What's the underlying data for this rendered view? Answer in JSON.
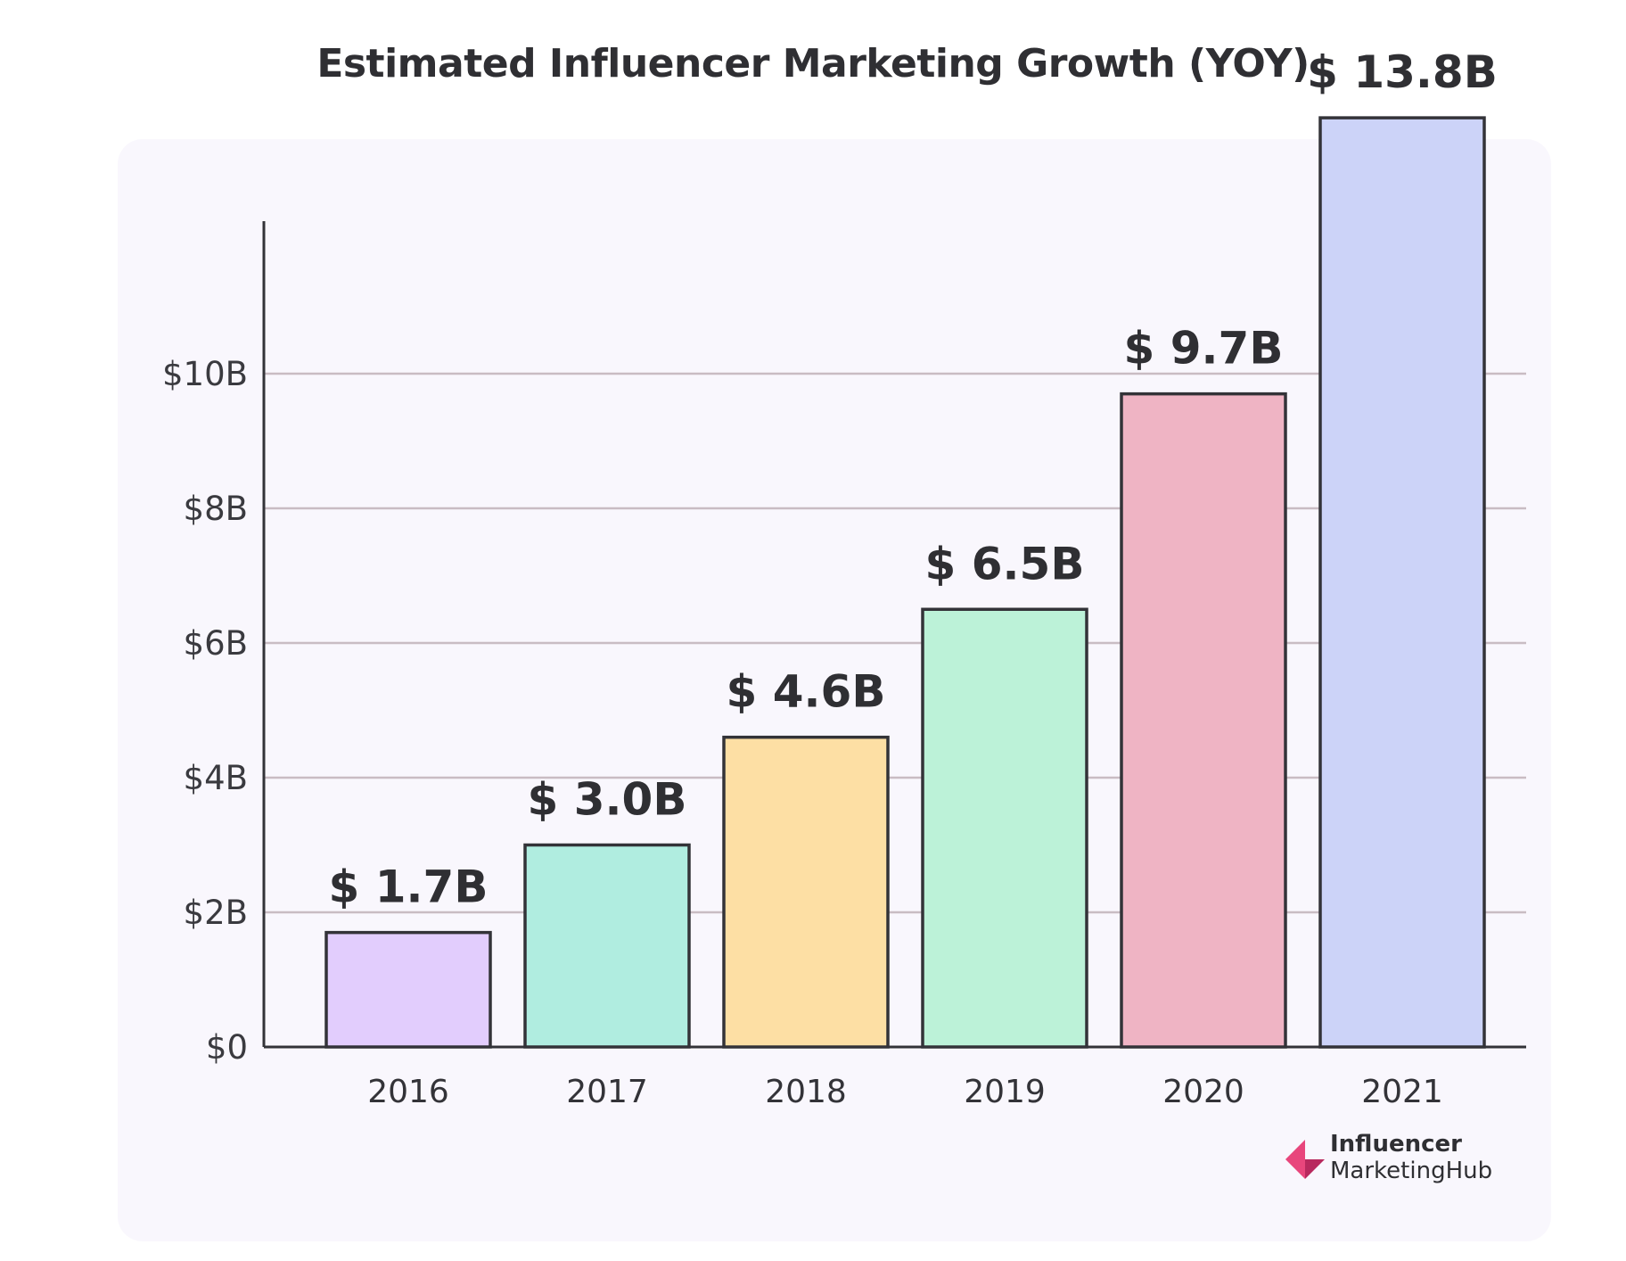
{
  "title": "Estimated Influencer Marketing Growth (YOY)",
  "brand": {
    "line1": "Influencer",
    "line2": "MarketingHub",
    "mark_colors": [
      "#e8467c",
      "#b8295e"
    ]
  },
  "chart_data": {
    "type": "bar",
    "title": "Estimated Influencer Marketing Growth (YOY)",
    "xlabel": "",
    "ylabel": "",
    "categories": [
      "2016",
      "2017",
      "2018",
      "2019",
      "2020",
      "2021"
    ],
    "values": [
      1.7,
      3.0,
      4.6,
      6.5,
      9.7,
      13.8
    ],
    "value_labels": [
      "$ 1.7B",
      "$ 3.0B",
      "$ 4.6B",
      "$ 6.5B",
      "$ 9.7B",
      "$ 13.8B"
    ],
    "bar_colors": [
      "#e2cdfd",
      "#b0ede0",
      "#fddfa4",
      "#bcf2d8",
      "#efb4c4",
      "#ccd3f8"
    ],
    "bar_outline": "#333338",
    "ylim": [
      0,
      12
    ],
    "yticks": [
      0,
      2,
      4,
      6,
      8,
      10
    ],
    "ytick_labels": [
      "$0",
      "$2B",
      "$4B",
      "$6B",
      "$8B",
      "$10B"
    ],
    "grid": true,
    "grid_color": "#c9bcc3"
  }
}
